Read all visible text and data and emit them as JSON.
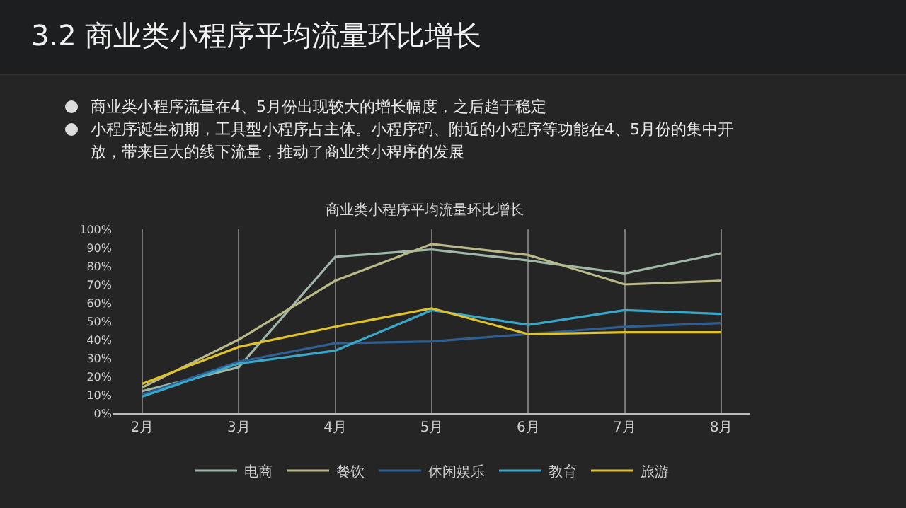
{
  "chart_data": {
    "type": "line",
    "title": "商业类小程序平均流量环比增长",
    "annotations": [
      "3.2 商业类小程序平均流量环比增长",
      "商业类小程序流量在4、5月份出现较大的增长幅度，之后趋于稳定",
      "小程序诞生初期，工具型小程序占主体。小程序码、附近的小程序等功能在4、5月份的集中开放，带来巨大的线下流量，推动了商业类小程序的发展"
    ],
    "categories": [
      "2月",
      "3月",
      "4月",
      "5月",
      "6月",
      "7月",
      "8月"
    ],
    "series": [
      {
        "name": "电商",
        "color": "#9fb8a8",
        "values": [
          12,
          25,
          85,
          89,
          83,
          76,
          87
        ]
      },
      {
        "name": "餐饮",
        "color": "#b9b98a",
        "values": [
          14,
          40,
          72,
          92,
          86,
          70,
          72
        ]
      },
      {
        "name": "休闲娱乐",
        "color": "#2f5f93",
        "values": [
          10,
          28,
          38,
          39,
          43,
          47,
          49
        ]
      },
      {
        "name": "教育",
        "color": "#3aa7c9",
        "values": [
          9,
          27,
          34,
          56,
          48,
          56,
          54
        ]
      },
      {
        "name": "旅游",
        "color": "#e0c22e",
        "values": [
          16,
          36,
          47,
          57,
          43,
          44,
          44
        ]
      }
    ],
    "ylim": [
      0,
      100
    ],
    "yticks": [
      {
        "value": 0,
        "label": "0%"
      },
      {
        "value": 10,
        "label": "10%"
      },
      {
        "value": 20,
        "label": "20%"
      },
      {
        "value": 30,
        "label": "30%"
      },
      {
        "value": 40,
        "label": "40%"
      },
      {
        "value": 50,
        "label": "50%"
      },
      {
        "value": 60,
        "label": "60%"
      },
      {
        "value": 70,
        "label": "70%"
      },
      {
        "value": 80,
        "label": "80%"
      },
      {
        "value": 90,
        "label": "90%"
      },
      {
        "value": 100,
        "label": "100%"
      }
    ],
    "grid": "x",
    "legend": "bottom",
    "marker": "none",
    "line_style": "solid"
  }
}
